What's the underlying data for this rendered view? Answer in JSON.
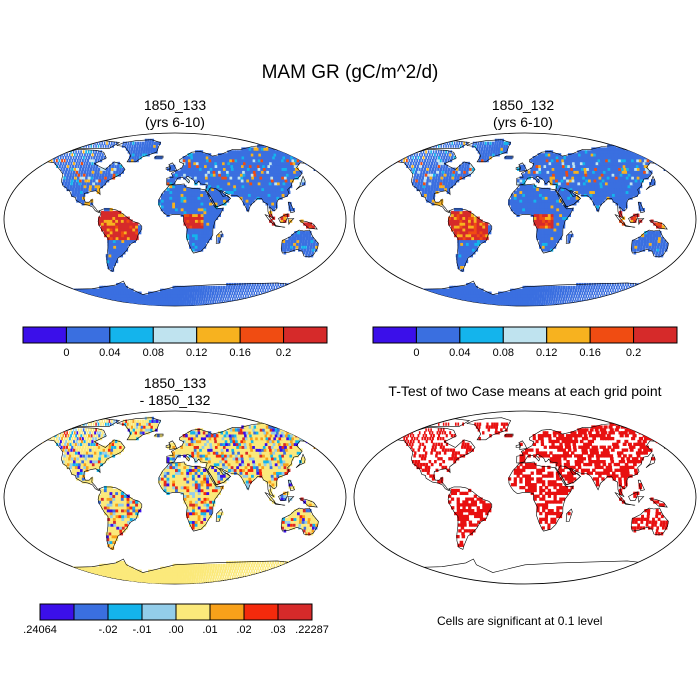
{
  "figure": {
    "title": "MAM GR (gC/m^2/d)"
  },
  "panels": [
    {
      "title": "1850_133\n(yrs 6-10)",
      "kind": "field"
    },
    {
      "title": "1850_132\n(yrs 6-10)",
      "kind": "field"
    },
    {
      "title": "1850_133\n- 1850_132",
      "kind": "difference"
    },
    {
      "title": "T-Test of two Case means at each grid point",
      "kind": "ttest"
    }
  ],
  "colorbars": {
    "top": {
      "colors": [
        "#3b0fea",
        "#3a6fe0",
        "#14b4ec",
        "#bfe3ef",
        "#f7b21f",
        "#f04c12",
        "#d62a2a"
      ],
      "labels": [
        "0",
        "0.04",
        "0.08",
        "0.12",
        "0.16",
        "0.2"
      ]
    },
    "bottom": {
      "colors": [
        "#3b0fea",
        "#3a6fe0",
        "#14b4ec",
        "#93cdea",
        "#fbe97b",
        "#f8a11a",
        "#f42a0c",
        "#d62a2a"
      ],
      "labels": [
        ".24064",
        "-.02",
        "-.01",
        ".00",
        ".01",
        ".02",
        ".03",
        ".22287"
      ]
    }
  },
  "ttest": {
    "note": "Cells are significant at 0.1 level",
    "significant_color": "#e81010"
  },
  "colors": {
    "ocean": "#ffffff",
    "coastline": "#000000",
    "field_base": "#3a6fe0",
    "tropics_high": "#d62a2a",
    "diff_base": "#fbe97b"
  }
}
